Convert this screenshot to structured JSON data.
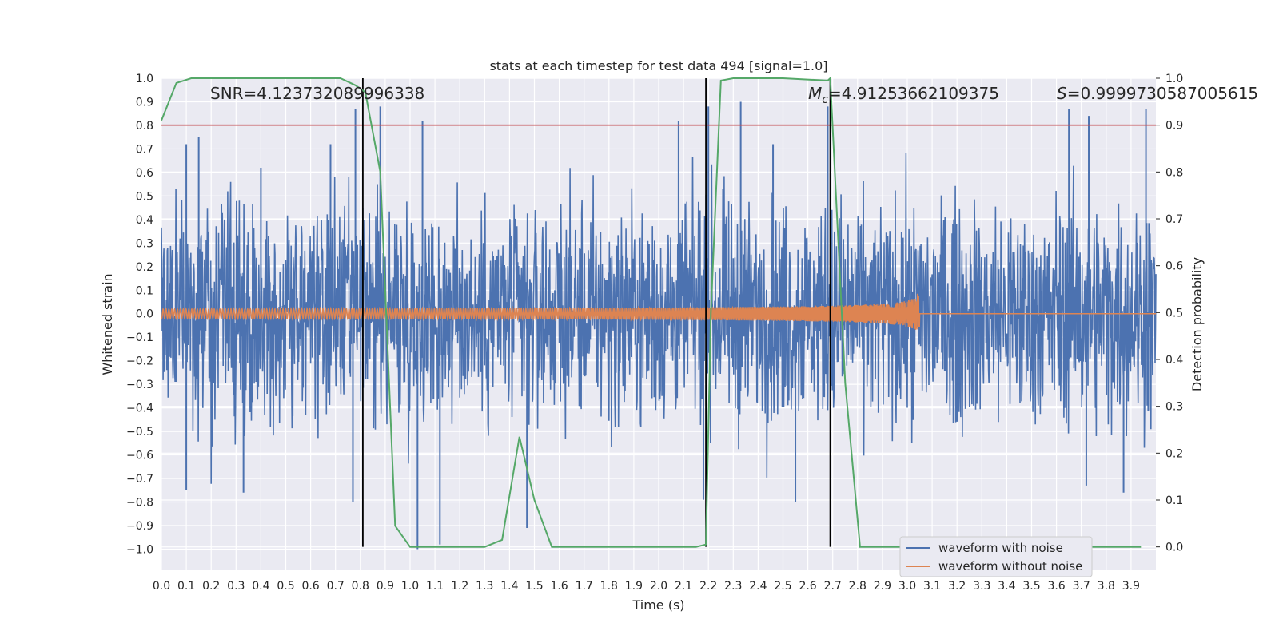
{
  "chart_data": {
    "type": "line",
    "title": "stats at each timestep for test data 494 [signal=1.0]",
    "xlabel": "Time (s)",
    "ylabel": "Whitened strain",
    "y2label": "Detection probability",
    "xlim": [
      0.0,
      4.0
    ],
    "ylim": [
      -1.09,
      1.0
    ],
    "y2lim": [
      -0.05,
      1.0
    ],
    "x_ticks": [
      "0.0",
      "0.1",
      "0.2",
      "0.3",
      "0.4",
      "0.5",
      "0.6",
      "0.7",
      "0.8",
      "0.9",
      "1.0",
      "1.1",
      "1.2",
      "1.3",
      "1.4",
      "1.5",
      "1.6",
      "1.7",
      "1.8",
      "1.9",
      "2.0",
      "2.1",
      "2.2",
      "2.3",
      "2.4",
      "2.5",
      "2.6",
      "2.7",
      "2.8",
      "2.9",
      "3.0",
      "3.1",
      "3.2",
      "3.3",
      "3.4",
      "3.5",
      "3.6",
      "3.7",
      "3.8",
      "3.9"
    ],
    "y_ticks": [
      "1.0",
      "0.9",
      "0.8",
      "0.7",
      "0.6",
      "0.5",
      "0.4",
      "0.3",
      "0.2",
      "0.1",
      "0.0",
      "−0.1",
      "−0.2",
      "−0.3",
      "−0.4",
      "−0.5",
      "−0.6",
      "−0.7",
      "−0.8",
      "−0.9",
      "−1.0"
    ],
    "y2_ticks": [
      "1.0",
      "0.9",
      "0.8",
      "0.7",
      "0.6",
      "0.5",
      "0.4",
      "0.3",
      "0.2",
      "0.1",
      "0.0"
    ],
    "grid": true,
    "legend_position": "lower-right",
    "annotations": {
      "snr": "SNR=4.123732089996338",
      "mc_symbol": "M",
      "mc_sub": "c",
      "mc_value": "=4.91253662109375",
      "s_symbol": "S",
      "s_value": "=0.9999730587005615"
    },
    "threshold": {
      "y2": 0.9,
      "color": "#c44e52"
    },
    "vlines": [
      0.81,
      2.19,
      2.69
    ],
    "series": [
      {
        "name": "waveform with noise",
        "color": "#4c72b0",
        "axis": "y",
        "style": "noise",
        "amplitude": 0.33,
        "peaks": [
          {
            "x": 0.1,
            "y": 0.72
          },
          {
            "x": 0.15,
            "y": 0.75
          },
          {
            "x": 0.4,
            "y": 0.62
          },
          {
            "x": 0.68,
            "y": 0.72
          },
          {
            "x": 0.78,
            "y": 0.87
          },
          {
            "x": 0.88,
            "y": 0.88
          },
          {
            "x": 1.05,
            "y": 0.82
          },
          {
            "x": 2.08,
            "y": 0.82
          },
          {
            "x": 2.2,
            "y": 0.88
          },
          {
            "x": 2.33,
            "y": 0.9
          },
          {
            "x": 2.46,
            "y": 0.72
          },
          {
            "x": 2.68,
            "y": 0.88
          },
          {
            "x": 3.65,
            "y": 0.87
          },
          {
            "x": 3.73,
            "y": 0.84
          },
          {
            "x": 3.96,
            "y": 0.87
          },
          {
            "x": 0.1,
            "y": -0.75
          },
          {
            "x": 0.33,
            "y": -0.76
          },
          {
            "x": 0.77,
            "y": -0.8
          },
          {
            "x": 1.03,
            "y": -1.0
          },
          {
            "x": 1.12,
            "y": -0.98
          },
          {
            "x": 1.47,
            "y": -0.91
          },
          {
            "x": 2.18,
            "y": -0.79
          },
          {
            "x": 2.55,
            "y": -0.8
          },
          {
            "x": 3.72,
            "y": -0.73
          },
          {
            "x": 3.87,
            "y": -0.76
          }
        ]
      },
      {
        "name": "waveform without noise",
        "color": "#dd8452",
        "axis": "y",
        "style": "chirp",
        "start_amplitude": 0.02,
        "end_amplitude": 0.1,
        "merger_time": 3.05
      },
      {
        "name": "detection probability",
        "color": "#55a868",
        "axis": "y2",
        "style": "line",
        "x": [
          0.0,
          0.06,
          0.12,
          0.3,
          0.5,
          0.72,
          0.78,
          0.82,
          0.88,
          0.94,
          1.0,
          1.2,
          1.3,
          1.37,
          1.44,
          1.5,
          1.57,
          1.8,
          2.0,
          2.15,
          2.19,
          2.21,
          2.25,
          2.3,
          2.5,
          2.68,
          2.69,
          2.75,
          2.81,
          2.9,
          3.1,
          3.4,
          3.7,
          3.94
        ],
        "y": [
          0.91,
          0.99,
          1.0,
          1.0,
          1.0,
          1.0,
          0.985,
          0.97,
          0.8,
          0.045,
          0.0,
          0.0,
          0.0,
          0.015,
          0.235,
          0.1,
          0.0,
          0.0,
          0.0,
          0.0,
          0.005,
          0.5,
          0.995,
          1.0,
          1.0,
          0.995,
          1.0,
          0.35,
          0.0,
          0.0,
          0.0,
          0.0,
          0.0,
          0.0
        ]
      }
    ]
  }
}
